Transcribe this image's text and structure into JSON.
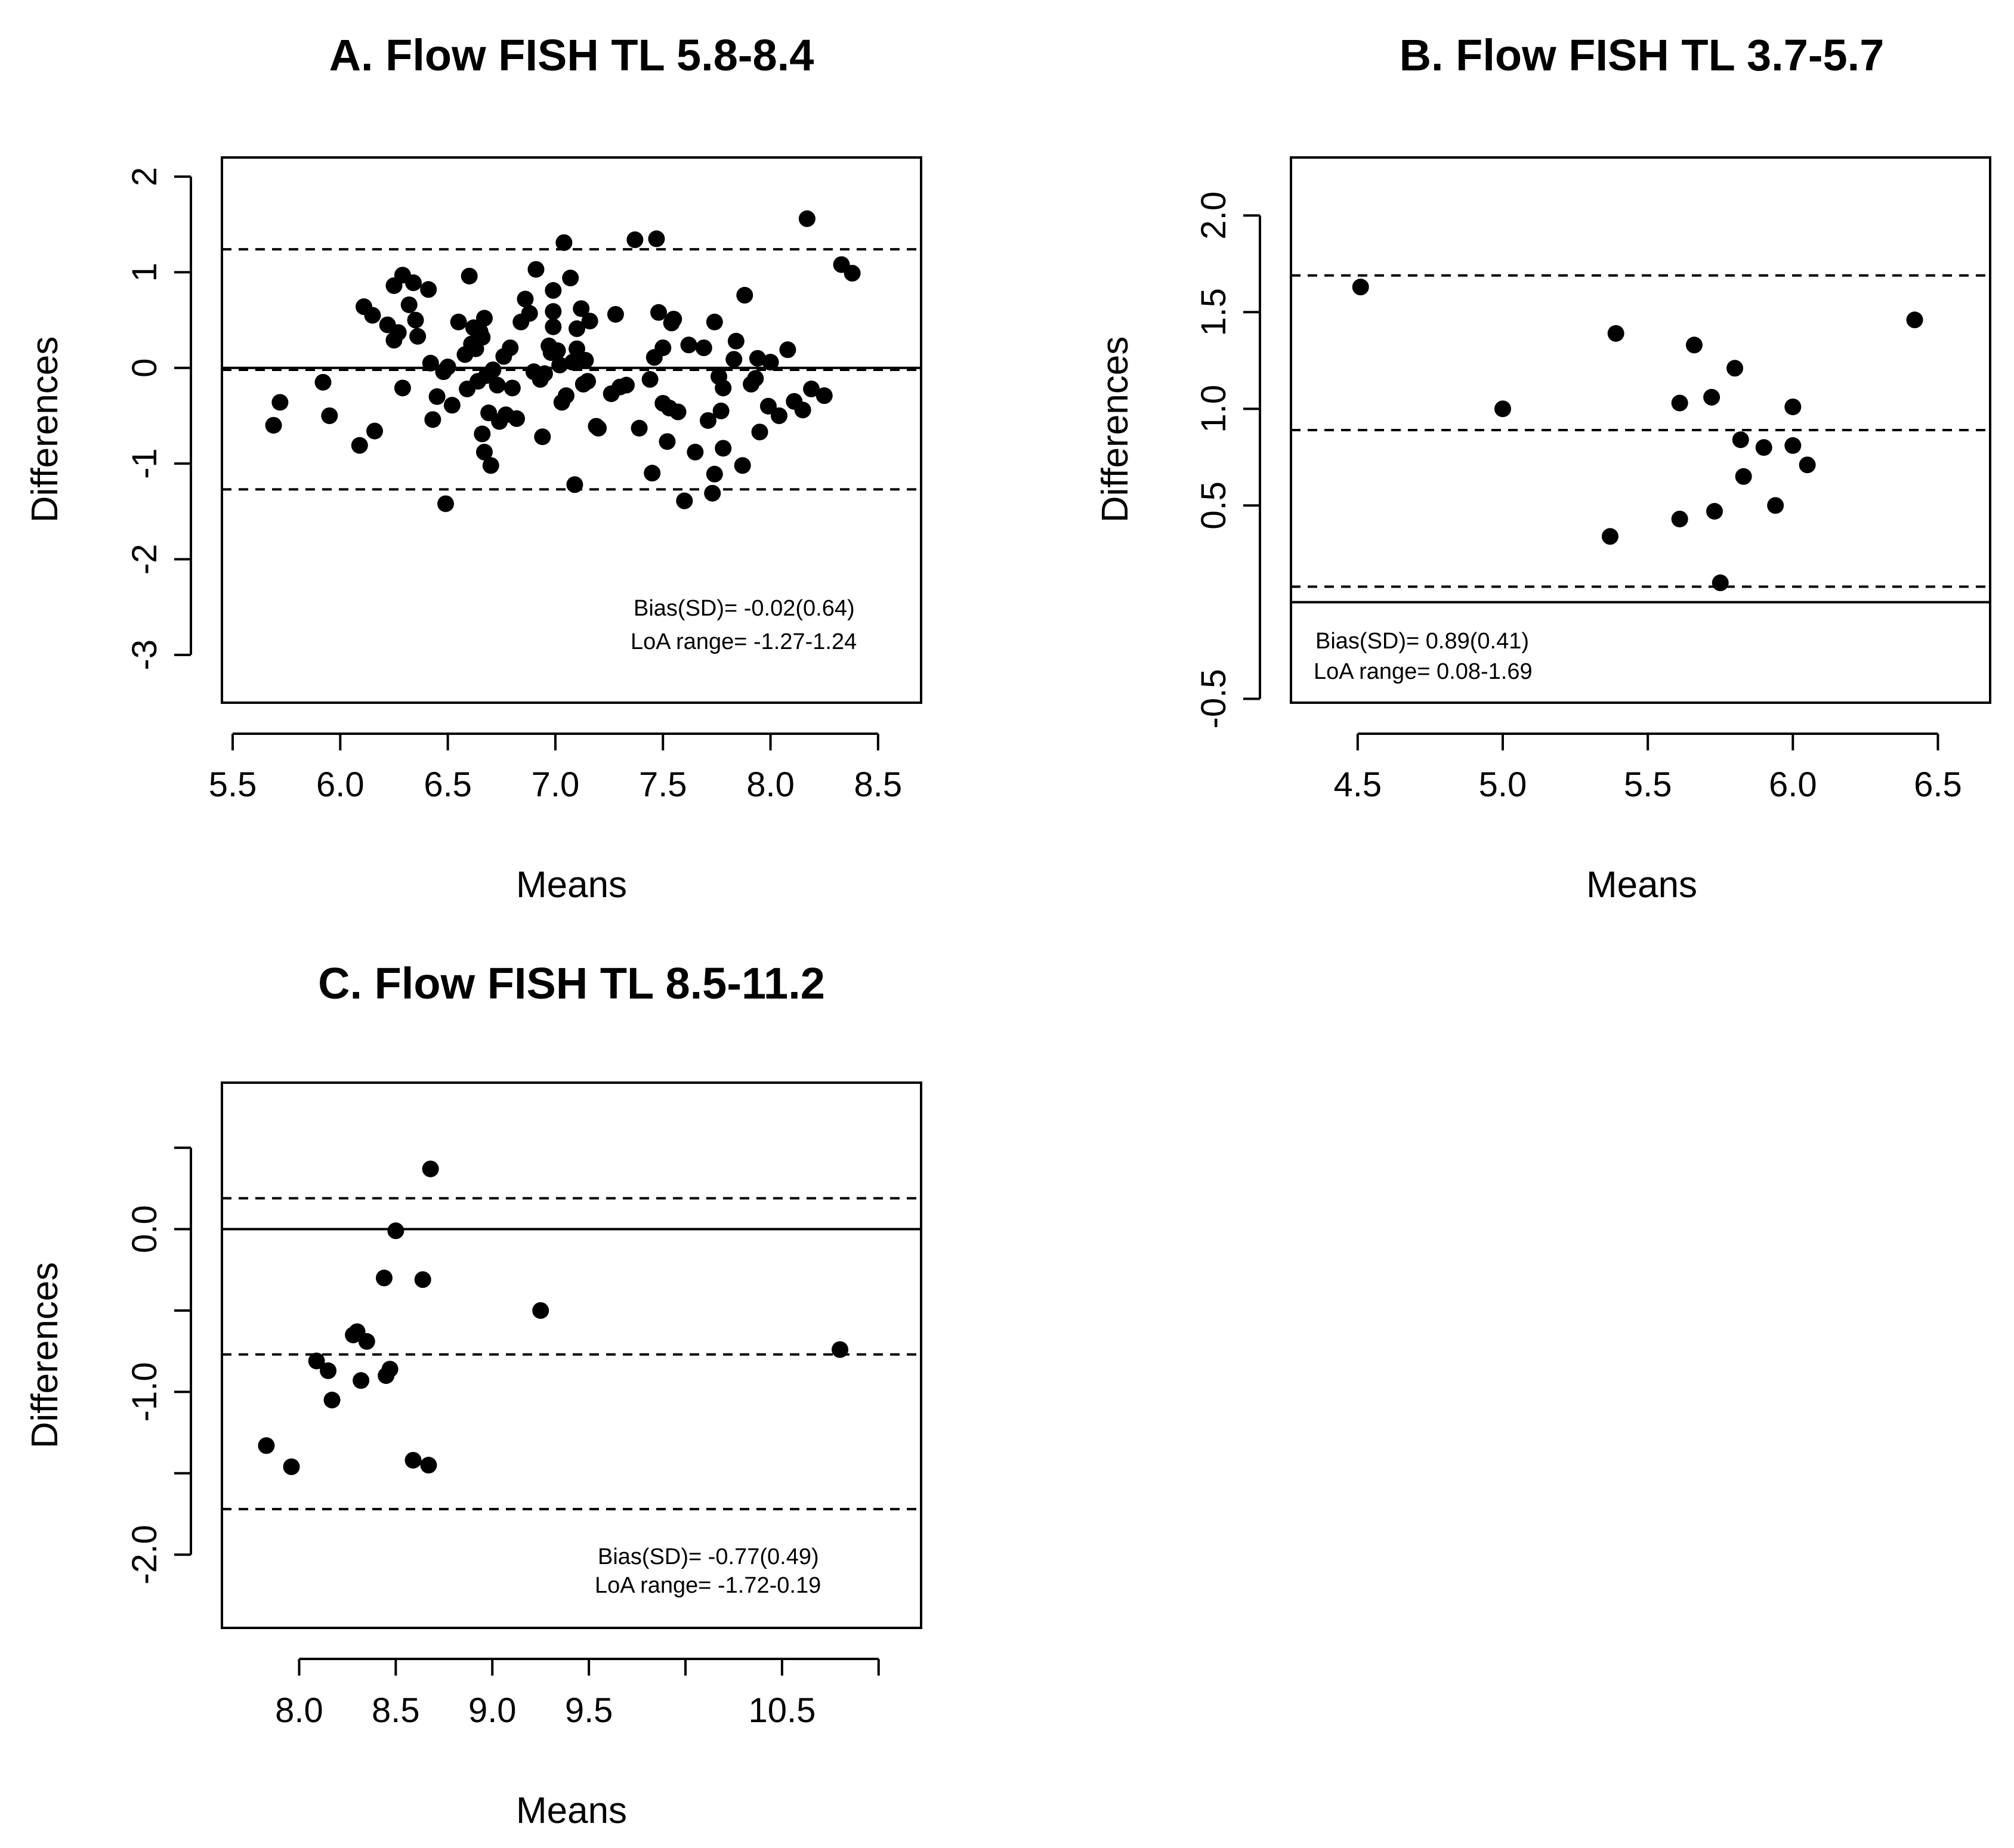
{
  "chart_data": [
    {
      "id": "A",
      "type": "scatter",
      "title": "A. Flow FISH TL 5.8-8.4",
      "xlabel": "Means",
      "ylabel": "Differences",
      "xlim": [
        5.45,
        8.7
      ],
      "ylim": [
        -3.5,
        2.2
      ],
      "xticks": [
        5.5,
        6.0,
        6.5,
        7.0,
        7.5,
        8.0,
        8.5
      ],
      "xtick_labels": [
        "5.5",
        "6.0",
        "6.5",
        "7.0",
        "7.5",
        "8.0",
        "8.5"
      ],
      "yticks": [
        -3,
        -2,
        -1,
        0,
        1,
        2
      ],
      "ytick_labels": [
        "-3",
        "-2",
        "-1",
        "0",
        "1",
        "2"
      ],
      "zero_line": 0,
      "bias": -0.02,
      "loa": [
        -1.27,
        1.24
      ],
      "annotations": [
        "Bias(SD)= -0.02(0.64)",
        "LoA range= -1.27-1.24"
      ],
      "points": [
        [
          5.69,
          -0.6
        ],
        [
          5.72,
          -0.36
        ],
        [
          5.92,
          -0.15
        ],
        [
          5.95,
          -0.5
        ],
        [
          6.09,
          -0.81
        ],
        [
          6.11,
          0.64
        ],
        [
          6.15,
          0.55
        ],
        [
          6.16,
          -0.66
        ],
        [
          6.22,
          0.45
        ],
        [
          6.25,
          0.86
        ],
        [
          6.25,
          0.29
        ],
        [
          6.27,
          0.37
        ],
        [
          6.29,
          -0.21
        ],
        [
          6.29,
          0.97
        ],
        [
          6.32,
          0.66
        ],
        [
          6.34,
          0.89
        ],
        [
          6.35,
          0.5
        ],
        [
          6.36,
          0.33
        ],
        [
          6.41,
          0.82
        ],
        [
          6.42,
          0.05
        ],
        [
          6.43,
          -0.54
        ],
        [
          6.45,
          -0.3
        ],
        [
          6.48,
          -0.04
        ],
        [
          6.49,
          -1.42
        ],
        [
          6.5,
          0.01
        ],
        [
          6.52,
          -0.39
        ],
        [
          6.55,
          0.48
        ],
        [
          6.58,
          0.14
        ],
        [
          6.59,
          -0.22
        ],
        [
          6.6,
          0.96
        ],
        [
          6.61,
          0.25
        ],
        [
          6.62,
          0.42
        ],
        [
          6.63,
          0.2
        ],
        [
          6.64,
          -0.14
        ],
        [
          6.65,
          0.38
        ],
        [
          6.66,
          0.32
        ],
        [
          6.67,
          0.52
        ],
        [
          6.66,
          -0.69
        ],
        [
          6.67,
          -0.88
        ],
        [
          6.68,
          -0.08
        ],
        [
          6.69,
          -0.47
        ],
        [
          6.7,
          -1.02
        ],
        [
          6.71,
          -0.02
        ],
        [
          6.73,
          -0.18
        ],
        [
          6.74,
          -0.56
        ],
        [
          6.76,
          0.12
        ],
        [
          6.77,
          -0.49
        ],
        [
          6.79,
          0.21
        ],
        [
          6.8,
          -0.21
        ],
        [
          6.82,
          -0.53
        ],
        [
          6.84,
          0.48
        ],
        [
          6.86,
          0.72
        ],
        [
          6.88,
          0.57
        ],
        [
          6.9,
          -0.04
        ],
        [
          6.91,
          1.03
        ],
        [
          6.93,
          -0.12
        ],
        [
          6.94,
          -0.72
        ],
        [
          6.95,
          -0.06
        ],
        [
          6.97,
          0.23
        ],
        [
          6.98,
          0.16
        ],
        [
          6.99,
          0.59
        ],
        [
          6.99,
          0.43
        ],
        [
          6.99,
          0.81
        ],
        [
          7.01,
          0.18
        ],
        [
          7.02,
          0.03
        ],
        [
          7.03,
          -0.36
        ],
        [
          7.04,
          1.31
        ],
        [
          7.05,
          -0.29
        ],
        [
          7.07,
          0.94
        ],
        [
          7.08,
          0.06
        ],
        [
          7.09,
          -1.22
        ],
        [
          7.1,
          0.2
        ],
        [
          7.1,
          0.41
        ],
        [
          7.12,
          0.62
        ],
        [
          7.13,
          -0.17
        ],
        [
          7.14,
          0.08
        ],
        [
          7.15,
          -0.14
        ],
        [
          7.16,
          0.49
        ],
        [
          7.19,
          -0.61
        ],
        [
          7.2,
          -0.63
        ],
        [
          7.26,
          -0.27
        ],
        [
          7.28,
          0.56
        ],
        [
          7.3,
          -0.2
        ],
        [
          7.33,
          -0.18
        ],
        [
          7.37,
          1.34
        ],
        [
          7.39,
          -0.63
        ],
        [
          7.44,
          -0.12
        ],
        [
          7.45,
          -1.1
        ],
        [
          7.46,
          0.11
        ],
        [
          7.47,
          1.35
        ],
        [
          7.48,
          0.58
        ],
        [
          7.5,
          0.21
        ],
        [
          7.5,
          -0.37
        ],
        [
          7.52,
          -0.77
        ],
        [
          7.53,
          -0.42
        ],
        [
          7.54,
          0.47
        ],
        [
          7.55,
          0.51
        ],
        [
          7.57,
          -0.46
        ],
        [
          7.6,
          -1.39
        ],
        [
          7.62,
          0.24
        ],
        [
          7.65,
          -0.88
        ],
        [
          7.69,
          0.21
        ],
        [
          7.71,
          -0.55
        ],
        [
          7.73,
          -1.31
        ],
        [
          7.74,
          -1.11
        ],
        [
          7.74,
          0.48
        ],
        [
          7.76,
          -0.09
        ],
        [
          7.77,
          -0.45
        ],
        [
          7.78,
          -0.84
        ],
        [
          7.78,
          -0.21
        ],
        [
          7.83,
          0.09
        ],
        [
          7.84,
          0.28
        ],
        [
          7.87,
          -1.02
        ],
        [
          7.88,
          0.76
        ],
        [
          7.91,
          -0.17
        ],
        [
          7.93,
          -0.11
        ],
        [
          7.94,
          0.1
        ],
        [
          7.95,
          -0.67
        ],
        [
          7.99,
          -0.4
        ],
        [
          8.0,
          0.06
        ],
        [
          8.04,
          -0.5
        ],
        [
          8.08,
          0.19
        ],
        [
          8.11,
          -0.35
        ],
        [
          8.15,
          -0.44
        ],
        [
          8.17,
          1.56
        ],
        [
          8.19,
          -0.22
        ],
        [
          8.25,
          -0.29
        ],
        [
          8.33,
          1.08
        ],
        [
          8.38,
          0.99
        ]
      ]
    },
    {
      "id": "B",
      "type": "scatter",
      "title": "B. Flow FISH TL 3.7-5.7",
      "xlabel": "Means",
      "ylabel": "Differences",
      "xlim": [
        4.27,
        6.68
      ],
      "ylim": [
        -0.52,
        2.3
      ],
      "xticks": [
        4.5,
        5.0,
        5.5,
        6.0,
        6.5
      ],
      "xtick_labels": [
        "4.5",
        "5.0",
        "5.5",
        "6.0",
        "6.5"
      ],
      "yticks": [
        -0.5,
        0.5,
        1.0,
        1.5,
        2.0
      ],
      "ytick_labels": [
        "-0.5",
        "0.5",
        "1.0",
        "1.5",
        "2.0"
      ],
      "zero_line": 0,
      "bias": 0.89,
      "loa": [
        0.08,
        1.69
      ],
      "annotations": [
        "Bias(SD)= 0.89(0.41)",
        "LoA range= 0.08-1.69"
      ],
      "points": [
        [
          4.51,
          1.63
        ],
        [
          5.0,
          1.0
        ],
        [
          5.37,
          0.34
        ],
        [
          5.39,
          1.39
        ],
        [
          5.61,
          0.43
        ],
        [
          5.61,
          1.03
        ],
        [
          5.66,
          1.33
        ],
        [
          5.72,
          1.06
        ],
        [
          5.73,
          0.47
        ],
        [
          5.75,
          0.1
        ],
        [
          5.8,
          1.21
        ],
        [
          5.82,
          0.84
        ],
        [
          5.83,
          0.65
        ],
        [
          5.9,
          0.8
        ],
        [
          5.94,
          0.5
        ],
        [
          6.0,
          0.81
        ],
        [
          6.0,
          1.01
        ],
        [
          6.05,
          0.71
        ],
        [
          6.42,
          1.46
        ]
      ]
    },
    {
      "id": "C",
      "type": "scatter",
      "title": "C. Flow FISH TL 8.5-11.2",
      "xlabel": "Means",
      "ylabel": "Differences",
      "xlim": [
        7.6,
        11.22
      ],
      "ylim": [
        -2.45,
        0.9
      ],
      "xticks": [
        8.0,
        8.5,
        9.0,
        9.5,
        10.0,
        10.5,
        11.0
      ],
      "xtick_labels": [
        "8.0",
        "8.5",
        "9.0",
        "9.5",
        "",
        "10.5",
        ""
      ],
      "yticks": [
        -2.0,
        -1.5,
        -1.0,
        -0.5,
        0.0,
        0.5
      ],
      "ytick_labels": [
        "-2.0",
        "",
        "-1.0",
        "",
        "0.0",
        ""
      ],
      "zero_line": 0,
      "bias": -0.77,
      "loa": [
        -1.72,
        0.19
      ],
      "annotations": [
        "Bias(SD)= -0.77(0.49)",
        "LoA range= -1.72-0.19"
      ],
      "points": [
        [
          7.83,
          -1.33
        ],
        [
          7.96,
          -1.46
        ],
        [
          8.09,
          -0.81
        ],
        [
          8.15,
          -0.87
        ],
        [
          8.17,
          -1.05
        ],
        [
          8.28,
          -0.65
        ],
        [
          8.3,
          -0.63
        ],
        [
          8.32,
          -0.93
        ],
        [
          8.35,
          -0.69
        ],
        [
          8.44,
          -0.3
        ],
        [
          8.45,
          -0.9
        ],
        [
          8.47,
          -0.86
        ],
        [
          8.5,
          -0.01
        ],
        [
          8.59,
          -1.42
        ],
        [
          8.64,
          -0.31
        ],
        [
          8.67,
          -1.45
        ],
        [
          8.68,
          0.37
        ],
        [
          9.25,
          -0.5
        ],
        [
          10.8,
          -0.74
        ]
      ]
    }
  ]
}
